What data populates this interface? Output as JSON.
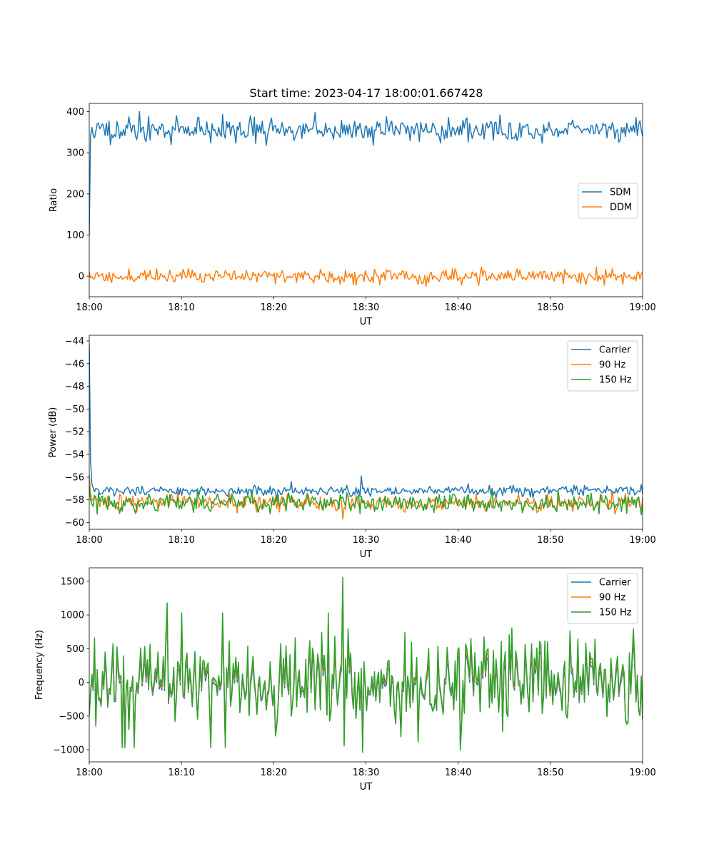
{
  "figure": {
    "title": "Start time: 2023-04-17 18:00:01.667428"
  },
  "colors": {
    "blue": "#1f77b4",
    "orange": "#ff7f0e",
    "green": "#2ca02c"
  },
  "chart_data": [
    {
      "type": "line",
      "title": "Start time: 2023-04-17 18:00:01.667428",
      "xlabel": "UT",
      "ylabel": "Ratio",
      "xlim": [
        "18:00",
        "19:00"
      ],
      "xticks": [
        "18:00",
        "18:10",
        "18:20",
        "18:30",
        "18:40",
        "18:50",
        "19:00"
      ],
      "ylim": [
        -50,
        420
      ],
      "yticks": [
        0,
        100,
        200,
        300,
        400
      ],
      "ytick_labels": [
        "0",
        "100",
        "200",
        "300",
        "400"
      ],
      "legend": "center-right",
      "series": [
        {
          "name": "SDM",
          "color": "#1f77b4",
          "approx_mean": 355,
          "approx_std": 14,
          "start_value": 100,
          "spikes": [
            [
              5.5,
              400
            ],
            [
              14.5,
              393
            ],
            [
              24.5,
              398
            ],
            [
              9.5,
              390
            ]
          ]
        },
        {
          "name": "DDM",
          "color": "#ff7f0e",
          "approx_mean": 0,
          "approx_std": 9,
          "spikes": [
            [
              36.5,
              -25
            ],
            [
              42.5,
              22
            ],
            [
              55,
              22
            ]
          ]
        }
      ]
    },
    {
      "type": "line",
      "title": "",
      "xlabel": "UT",
      "ylabel": "Power (dB)",
      "xlim": [
        "18:00",
        "19:00"
      ],
      "xticks": [
        "18:00",
        "18:10",
        "18:20",
        "18:30",
        "18:40",
        "18:50",
        "19:00"
      ],
      "ylim": [
        -60.6,
        -43.5
      ],
      "yticks": [
        -60,
        -58,
        -56,
        -54,
        -52,
        -50,
        -48,
        -46,
        -44
      ],
      "ytick_labels": [
        "−60",
        "−58",
        "−56",
        "−54",
        "−52",
        "−50",
        "−48",
        "−46",
        "−44"
      ],
      "legend": "top-right",
      "series": [
        {
          "name": "Carrier",
          "color": "#1f77b4",
          "approx_mean": -57.2,
          "approx_std": 0.25,
          "start_value": -44.3,
          "spikes": [
            [
              29.5,
              -55.9
            ]
          ]
        },
        {
          "name": "90 Hz",
          "color": "#ff7f0e",
          "approx_mean": -58.3,
          "approx_std": 0.35,
          "start_value": -55.8,
          "spikes": [
            [
              27.5,
              -59.7
            ]
          ]
        },
        {
          "name": "150 Hz",
          "color": "#2ca02c",
          "approx_mean": -58.3,
          "approx_std": 0.4,
          "start_value": -56.8,
          "spikes": []
        }
      ]
    },
    {
      "type": "line",
      "title": "",
      "xlabel": "UT",
      "ylabel": "Frequency (Hz)",
      "xlim": [
        "18:00",
        "19:00"
      ],
      "xticks": [
        "18:00",
        "18:10",
        "18:20",
        "18:30",
        "18:40",
        "18:50",
        "19:00"
      ],
      "ylim": [
        -1180,
        1700
      ],
      "yticks": [
        -1000,
        -500,
        0,
        500,
        1000,
        1500
      ],
      "ytick_labels": [
        "−1000",
        "−500",
        "0",
        "500",
        "1000",
        "1500"
      ],
      "legend": "top-right",
      "series": [
        {
          "name": "Carrier",
          "color": "#1f77b4",
          "approx_mean": -20,
          "approx_std": 340
        },
        {
          "name": "90 Hz",
          "color": "#ff7f0e",
          "approx_mean": 0,
          "approx_std": 350
        },
        {
          "name": "150 Hz",
          "color": "#2ca02c",
          "approx_mean": 30,
          "approx_std": 360,
          "spikes": [
            [
              8.5,
              1180
            ],
            [
              27.5,
              1560
            ],
            [
              40.3,
              -1010
            ],
            [
              29.7,
              -1040
            ]
          ]
        }
      ]
    }
  ]
}
